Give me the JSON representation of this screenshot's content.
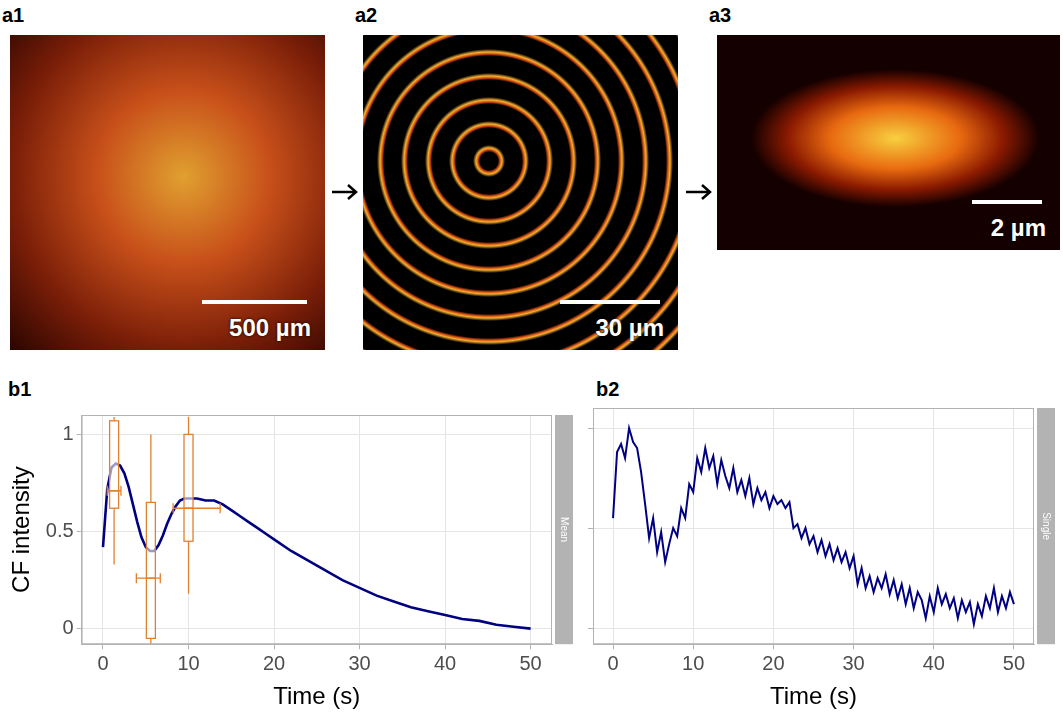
{
  "images": [
    {
      "label": "a1",
      "scale_bar": "500 µm"
    },
    {
      "label": "a2",
      "scale_bar": "30 µm"
    },
    {
      "label": "a3",
      "scale_bar": "2 µm"
    }
  ],
  "chart_data": [
    {
      "type": "line",
      "panel": "b1",
      "strip": "Mean",
      "x_label": "Time (s)",
      "y_label": "CF intensity",
      "xlim": [
        -2.5,
        52.5
      ],
      "xticks": [
        0,
        10,
        20,
        30,
        40,
        50
      ],
      "ylim": [
        -0.08,
        1.1
      ],
      "yticks": [
        0,
        0.5,
        1
      ],
      "grid": true,
      "x": [
        0,
        0.5,
        1,
        1.5,
        2,
        2.5,
        3,
        3.5,
        4,
        4.5,
        5,
        5.5,
        6,
        6.5,
        7,
        7.5,
        8,
        8.5,
        9,
        9.5,
        10,
        11,
        12,
        13,
        14,
        15,
        16,
        17,
        18,
        19,
        20,
        22,
        24,
        26,
        28,
        30,
        32,
        34,
        36,
        38,
        40,
        42,
        44,
        46,
        48,
        50
      ],
      "series": [
        {
          "color": "#000080",
          "values": [
            0.42,
            0.72,
            0.83,
            0.85,
            0.84,
            0.8,
            0.73,
            0.64,
            0.55,
            0.47,
            0.42,
            0.4,
            0.4,
            0.43,
            0.48,
            0.54,
            0.59,
            0.63,
            0.66,
            0.67,
            0.67,
            0.67,
            0.66,
            0.66,
            0.64,
            0.61,
            0.58,
            0.55,
            0.52,
            0.49,
            0.46,
            0.4,
            0.35,
            0.3,
            0.25,
            0.21,
            0.17,
            0.14,
            0.11,
            0.09,
            0.07,
            0.05,
            0.04,
            0.02,
            0.01,
            0.0
          ]
        }
      ],
      "boxes": {
        "color": "#e0812f",
        "items": [
          {
            "x": 1.3,
            "x_low": 0.5,
            "x_high": 2.1,
            "whisker_low": 0.33,
            "q1": 0.62,
            "median": 0.71,
            "q3": 1.07,
            "whisker_high": 1.09
          },
          {
            "x": 5.6,
            "x_low": 3.9,
            "x_high": 6.7,
            "whisker_low": -0.08,
            "q1": -0.05,
            "median": 0.26,
            "q3": 0.65,
            "whisker_high": 1.0
          },
          {
            "x": 10.0,
            "x_low": 8.2,
            "x_high": 13.7,
            "whisker_low": 0.18,
            "q1": 0.45,
            "median": 0.62,
            "q3": 1.0,
            "whisker_high": 1.09
          }
        ]
      }
    },
    {
      "type": "line",
      "panel": "b2",
      "strip": "Single",
      "x_label": "Time (s)",
      "tick_labels": "x",
      "xlim": [
        -2.5,
        52.5
      ],
      "xticks": [
        0,
        10,
        20,
        30,
        40,
        50
      ],
      "ylim": [
        -0.08,
        1.1
      ],
      "yticks": [
        0,
        0.5,
        1
      ],
      "grid": true,
      "x": [
        0,
        0.5,
        1,
        1.5,
        2,
        2.5,
        3,
        3.5,
        4,
        4.5,
        5,
        5.5,
        6,
        6.5,
        7,
        7.5,
        8,
        8.5,
        9,
        9.5,
        10,
        10.5,
        11,
        11.5,
        12,
        12.5,
        13,
        13.5,
        14,
        14.5,
        15,
        15.5,
        16,
        16.5,
        17,
        17.5,
        18,
        18.5,
        19,
        19.5,
        20,
        20.5,
        21,
        21.5,
        22,
        22.5,
        23,
        23.5,
        24,
        24.5,
        25,
        25.5,
        26,
        26.5,
        27,
        27.5,
        28,
        28.5,
        29,
        29.5,
        30,
        30.5,
        31,
        31.5,
        32,
        32.5,
        33,
        33.5,
        34,
        34.5,
        35,
        35.5,
        36,
        36.5,
        37,
        37.5,
        38,
        38.5,
        39,
        39.5,
        40,
        40.5,
        41,
        41.5,
        42,
        42.5,
        43,
        43.5,
        44,
        44.5,
        45,
        45.5,
        46,
        46.5,
        47,
        47.5,
        48,
        48.5,
        49,
        49.5,
        50
      ],
      "series": [
        {
          "color": "#000080",
          "values": [
            0.55,
            0.88,
            0.92,
            0.85,
            1.0,
            0.93,
            0.9,
            0.78,
            0.62,
            0.45,
            0.55,
            0.38,
            0.48,
            0.33,
            0.42,
            0.5,
            0.46,
            0.6,
            0.55,
            0.72,
            0.68,
            0.85,
            0.78,
            0.9,
            0.8,
            0.86,
            0.72,
            0.84,
            0.76,
            0.7,
            0.8,
            0.68,
            0.74,
            0.66,
            0.75,
            0.62,
            0.7,
            0.64,
            0.68,
            0.6,
            0.66,
            0.62,
            0.64,
            0.6,
            0.63,
            0.5,
            0.52,
            0.45,
            0.5,
            0.42,
            0.46,
            0.38,
            0.44,
            0.36,
            0.42,
            0.34,
            0.4,
            0.33,
            0.38,
            0.3,
            0.36,
            0.22,
            0.3,
            0.2,
            0.26,
            0.18,
            0.25,
            0.2,
            0.27,
            0.17,
            0.24,
            0.15,
            0.22,
            0.12,
            0.2,
            0.1,
            0.18,
            0.14,
            0.05,
            0.16,
            0.08,
            0.2,
            0.12,
            0.17,
            0.1,
            0.15,
            0.05,
            0.14,
            0.08,
            0.13,
            0.02,
            0.12,
            0.06,
            0.16,
            0.1,
            0.2,
            0.08,
            0.16,
            0.1,
            0.18,
            0.12
          ]
        }
      ]
    }
  ]
}
